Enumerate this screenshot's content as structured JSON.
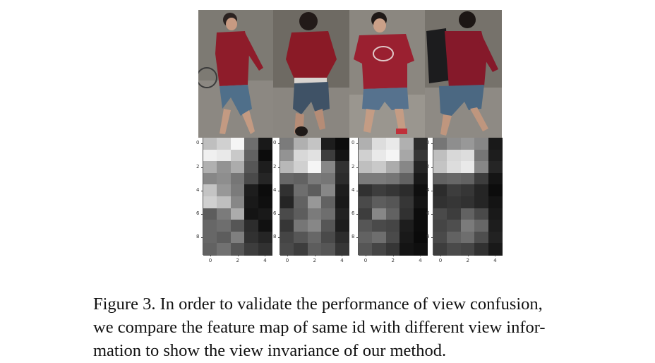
{
  "caption": {
    "lines": [
      "Figure 3. In order to validate the performance of view confusion,",
      "we compare the feature map of same id with different view infor-",
      "mation to show the view invariance of our method."
    ]
  },
  "photos": [
    {
      "shirt": "#8e1c2a",
      "pants": "#4f6f8a",
      "bg": "#7d7a73",
      "pose": "side-left"
    },
    {
      "shirt": "#8a1a26",
      "pants": "#3f5266",
      "bg": "#6e6a63",
      "pose": "back"
    },
    {
      "shirt": "#9a2030",
      "pants": "#56728e",
      "bg": "#8b8780",
      "pose": "front"
    },
    {
      "shirt": "#85192a",
      "pants": "#4b6882",
      "bg": "#76726b",
      "pose": "side-right"
    }
  ],
  "heatmaps": {
    "x_ticks": [
      "0",
      "2",
      "4"
    ],
    "y_ticks": [
      "0",
      "2",
      "4",
      "6",
      "8"
    ],
    "maps": [
      [
        [
          0.78,
          0.85,
          1.0,
          0.45,
          0.1
        ],
        [
          0.98,
          0.95,
          0.82,
          0.4,
          0.05
        ],
        [
          0.72,
          0.6,
          0.7,
          0.35,
          0.12
        ],
        [
          0.55,
          0.58,
          0.48,
          0.3,
          0.15
        ],
        [
          0.8,
          0.62,
          0.5,
          0.12,
          0.05
        ],
        [
          0.85,
          0.78,
          0.55,
          0.1,
          0.06
        ],
        [
          0.38,
          0.5,
          0.7,
          0.08,
          0.1
        ],
        [
          0.42,
          0.45,
          0.35,
          0.18,
          0.07
        ],
        [
          0.42,
          0.38,
          0.52,
          0.2,
          0.15
        ],
        [
          0.4,
          0.46,
          0.35,
          0.25,
          0.2
        ]
      ],
      [
        [
          0.5,
          0.72,
          0.8,
          0.12,
          0.05
        ],
        [
          0.6,
          0.88,
          0.92,
          0.25,
          0.08
        ],
        [
          0.75,
          0.85,
          1.0,
          0.55,
          0.2
        ],
        [
          0.42,
          0.4,
          0.5,
          0.48,
          0.18
        ],
        [
          0.2,
          0.45,
          0.38,
          0.55,
          0.12
        ],
        [
          0.15,
          0.4,
          0.62,
          0.4,
          0.1
        ],
        [
          0.3,
          0.38,
          0.5,
          0.45,
          0.14
        ],
        [
          0.22,
          0.48,
          0.55,
          0.35,
          0.12
        ],
        [
          0.28,
          0.35,
          0.42,
          0.3,
          0.18
        ],
        [
          0.3,
          0.25,
          0.38,
          0.35,
          0.22
        ]
      ],
      [
        [
          0.72,
          0.9,
          0.95,
          0.72,
          0.18
        ],
        [
          0.85,
          0.95,
          1.0,
          0.68,
          0.22
        ],
        [
          0.78,
          0.82,
          0.7,
          0.55,
          0.15
        ],
        [
          0.5,
          0.5,
          0.48,
          0.4,
          0.1
        ],
        [
          0.2,
          0.25,
          0.22,
          0.18,
          0.06
        ],
        [
          0.3,
          0.38,
          0.35,
          0.22,
          0.08
        ],
        [
          0.25,
          0.55,
          0.4,
          0.2,
          0.05
        ],
        [
          0.35,
          0.3,
          0.28,
          0.12,
          0.05
        ],
        [
          0.4,
          0.45,
          0.3,
          0.1,
          0.04
        ],
        [
          0.35,
          0.28,
          0.22,
          0.08,
          0.06
        ]
      ],
      [
        [
          0.48,
          0.58,
          0.62,
          0.55,
          0.1
        ],
        [
          0.78,
          0.88,
          0.9,
          0.48,
          0.12
        ],
        [
          0.8,
          0.9,
          0.95,
          0.55,
          0.15
        ],
        [
          0.4,
          0.42,
          0.4,
          0.25,
          0.08
        ],
        [
          0.18,
          0.25,
          0.22,
          0.15,
          0.05
        ],
        [
          0.2,
          0.22,
          0.2,
          0.15,
          0.08
        ],
        [
          0.3,
          0.25,
          0.4,
          0.3,
          0.1
        ],
        [
          0.28,
          0.32,
          0.5,
          0.42,
          0.12
        ],
        [
          0.3,
          0.4,
          0.45,
          0.32,
          0.14
        ],
        [
          0.25,
          0.3,
          0.28,
          0.2,
          0.1
        ]
      ]
    ]
  }
}
